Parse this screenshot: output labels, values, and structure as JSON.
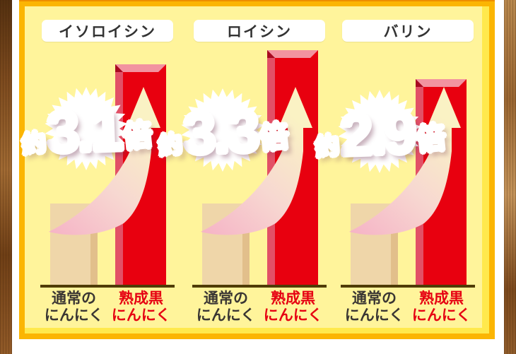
{
  "panel": {
    "bg_color": "#FFF49B",
    "border_color": "#FBB503",
    "border_top_edge_color": "#EE8E00",
    "inner_highlight_color": "#FFE94D"
  },
  "chart_data": {
    "type": "bar",
    "title": "",
    "grid": false,
    "legend_position": "none",
    "groups": [
      {
        "label": "イソロイシン",
        "multiplier_prefix": "約",
        "multiplier_value": "3.1",
        "multiplier_suffix": "倍",
        "categories": [
          "通常のにんにく",
          "熟成黒にんにく"
        ],
        "relative_values": [
          1,
          3.1
        ],
        "normal_label_lines": [
          "通常の",
          "にんにく"
        ],
        "black_label_lines": [
          "熟成黒",
          "にんにく"
        ]
      },
      {
        "label": "ロイシン",
        "multiplier_prefix": "約",
        "multiplier_value": "3.3",
        "multiplier_suffix": "倍",
        "categories": [
          "通常のにんにく",
          "熟成黒にんにく"
        ],
        "relative_values": [
          1,
          3.3
        ],
        "normal_label_lines": [
          "通常の",
          "にんにく"
        ],
        "black_label_lines": [
          "熟成黒",
          "にんにく"
        ]
      },
      {
        "label": "バリン",
        "multiplier_prefix": "約",
        "multiplier_value": "2.9",
        "multiplier_suffix": "倍",
        "categories": [
          "通常のにんにく",
          "熟成黒にんにく"
        ],
        "relative_values": [
          1,
          2.9
        ],
        "normal_label_lines": [
          "通常の",
          "にんにく"
        ],
        "black_label_lines": [
          "熟成黒",
          "にんにく"
        ]
      }
    ],
    "bar_colors": {
      "normal": "#EFD6A9",
      "black_garlic": "#E8000F"
    },
    "baseline_color": "#503C06",
    "multiplier_text_colors": {
      "top": "#F386BA",
      "bottom": "#BC0A6F"
    },
    "category_label_colors": {
      "normal": "#3A3633",
      "black_garlic": "#E60012"
    }
  }
}
